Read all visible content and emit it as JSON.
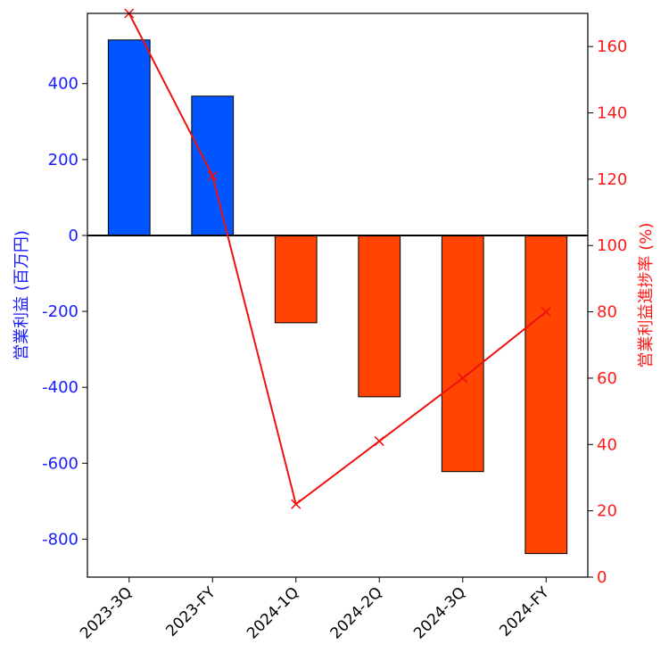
{
  "chart_data": {
    "type": "bar",
    "title": "",
    "categories": [
      "2023-3Q",
      "2023-FY",
      "2024-1Q",
      "2024-2Q",
      "2024-3Q",
      "2024-FY"
    ],
    "series": [
      {
        "name": "",
        "type": "bar",
        "axis": "left",
        "values": [
          515,
          367,
          -230,
          -425,
          -622,
          -838
        ],
        "colors": [
          "#0055ff",
          "#0055ff",
          "#ff4500",
          "#ff4500",
          "#ff4500",
          "#ff4500"
        ]
      },
      {
        "name": "",
        "type": "line",
        "axis": "right",
        "values": [
          170,
          121,
          22,
          41,
          60,
          80
        ],
        "color": "#ee1111",
        "marker": "x"
      }
    ],
    "y_left": {
      "label": "営業利益 (百万円)",
      "range": [
        -900,
        585
      ],
      "ticks": [
        400,
        200,
        0,
        -200,
        -400,
        -600,
        -800
      ],
      "tick_labels": [
        "400",
        "200",
        "0",
        "-200",
        "-400",
        "-600",
        "-800"
      ],
      "color": "#1a1aff"
    },
    "y_right": {
      "label": "営業利益進捗率 (%)",
      "range": [
        0,
        170
      ],
      "ticks": [
        0,
        20,
        40,
        60,
        80,
        100,
        120,
        140,
        160
      ],
      "tick_labels": [
        "0",
        "20",
        "40",
        "60",
        "80",
        "100",
        "120",
        "140",
        "160"
      ],
      "color": "#ff1a1a"
    },
    "xlabel": "",
    "grid": false,
    "legend": "none",
    "zero_line": true
  }
}
